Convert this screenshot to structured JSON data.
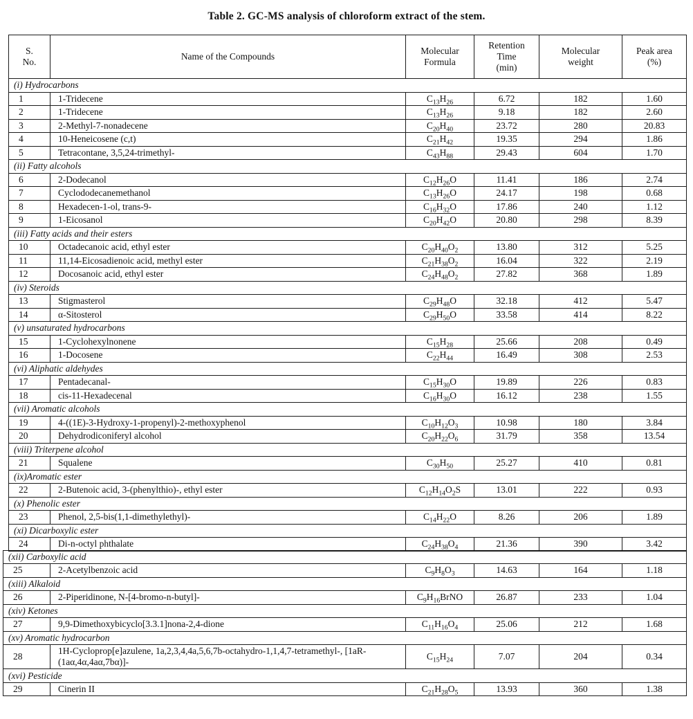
{
  "page": {
    "title": "Table 2.  GC-MS analysis of chloroform extract of the stem."
  },
  "table": {
    "headers": {
      "sno": "S.\nNo.",
      "name": "Name of the Compounds",
      "formula": "Molecular\nFormula",
      "retention": "Retention\nTime\n(min)",
      "weight": "Molecular\nweight",
      "area": "Peak area\n(%)"
    },
    "parts": [
      {
        "sections": [
          {
            "label": "(i) Hydrocarbons",
            "rows": [
              {
                "no": "1",
                "name": "1-Tridecene",
                "formula": "C13H26",
                "retention": "6.72",
                "weight": "182",
                "area": "1.60"
              },
              {
                "no": "2",
                "name": "1-Tridecene",
                "formula": "C13H26",
                "retention": "9.18",
                "weight": "182",
                "area": "2.60"
              },
              {
                "no": "3",
                "name": "2-Methyl-7-nonadecene",
                "formula": "C20H40",
                "retention": "23.72",
                "weight": "280",
                "area": "20.83"
              },
              {
                "no": "4",
                "name": "10-Heneicosene (c,t)",
                "formula": "C21H42",
                "retention": "19.35",
                "weight": "294",
                "area": "1.86"
              },
              {
                "no": "5",
                "name": "Tetracontane, 3,5,24-trimethyl-",
                "formula": "C43H88",
                "retention": "29.43",
                "weight": "604",
                "area": "1.70"
              }
            ]
          },
          {
            "label": "(ii) Fatty alcohols",
            "rows": [
              {
                "no": "6",
                "name": "2-Dodecanol",
                "formula": "C12H26O",
                "retention": "11.41",
                "weight": "186",
                "area": "2.74"
              },
              {
                "no": "7",
                "name": "Cyclododecanemethanol",
                "formula": "C13H26O",
                "retention": "24.17",
                "weight": "198",
                "area": "0.68"
              },
              {
                "no": "8",
                "name": "Hexadecen-1-ol, trans-9-",
                "formula": "C16H32O",
                "retention": "17.86",
                "weight": "240",
                "area": "1.12"
              },
              {
                "no": "9",
                "name": "1-Eicosanol",
                "formula": "C20H42O",
                "retention": "20.80",
                "weight": "298",
                "area": "8.39"
              }
            ]
          },
          {
            "label": "(iii) Fatty acids and their esters",
            "rows": [
              {
                "no": "10",
                "name": "Octadecanoic acid, ethyl ester",
                "formula": "C20H40O2",
                "retention": "13.80",
                "weight": "312",
                "area": "5.25"
              },
              {
                "no": "11",
                "name": "11,14-Eicosadienoic acid, methyl ester",
                "formula": "C21H38O2",
                "retention": "16.04",
                "weight": "322",
                "area": "2.19"
              },
              {
                "no": "12",
                "name": "Docosanoic acid, ethyl ester",
                "formula": "C24H48O2",
                "retention": "27.82",
                "weight": "368",
                "area": "1.89"
              }
            ]
          },
          {
            "label": "(iv) Steroids",
            "rows": [
              {
                "no": "13",
                "name": "Stigmasterol",
                "formula": "C29H48O",
                "retention": "32.18",
                "weight": "412",
                "area": "5.47"
              },
              {
                "no": "14",
                "name": "α-Sitosterol",
                "formula": "C29H50O",
                "retention": "33.58",
                "weight": "414",
                "area": "8.22"
              }
            ]
          },
          {
            "label": "(v) unsaturated hydrocarbons",
            "rows": [
              {
                "no": "15",
                "name": "1-Cyclohexylnonene",
                "formula": "C15H28",
                "retention": "25.66",
                "weight": "208",
                "area": "0.49"
              },
              {
                "no": "16",
                "name": "1-Docosene",
                "formula": "C22H44",
                "retention": "16.49",
                "weight": "308",
                "area": "2.53"
              }
            ]
          },
          {
            "label": "(vi) Aliphatic aldehydes",
            "rows": [
              {
                "no": "17",
                "name": "Pentadecanal-",
                "formula": "C15H30O",
                "retention": "19.89",
                "weight": "226",
                "area": "0.83"
              },
              {
                "no": "18",
                "name": "cis-11-Hexadecenal",
                "formula": "C16H30O",
                "retention": "16.12",
                "weight": "238",
                "area": "1.55"
              }
            ]
          },
          {
            "label": "(vii) Aromatic alcohols",
            "rows": [
              {
                "no": "19",
                "name": "4-((1E)-3-Hydroxy-1-propenyl)-2-methoxyphenol",
                "formula": "C10H12O3",
                "retention": "10.98",
                "weight": "180",
                "area": "3.84"
              },
              {
                "no": "20",
                "name": "Dehydrodiconiferyl alcohol",
                "formula": "C20H22O6",
                "retention": "31.79",
                "weight": "358",
                "area": "13.54"
              }
            ]
          },
          {
            "label": "(viii) Triterpene alcohol",
            "rows": [
              {
                "no": "21",
                "name": "Squalene",
                "formula": "C30H50",
                "retention": "25.27",
                "weight": "410",
                "area": "0.81"
              }
            ]
          },
          {
            "label": "(ix)Aromatic ester",
            "rows": [
              {
                "no": "22",
                "name": "2-Butenoic acid, 3-(phenylthio)-, ethyl ester",
                "formula": "C12H14O2S",
                "retention": "13.01",
                "weight": "222",
                "area": "0.93"
              }
            ]
          },
          {
            "label": "(x) Phenolic ester",
            "rows": [
              {
                "no": "23",
                "name": "Phenol, 2,5-bis(1,1-dimethylethyl)-",
                "formula": "C14H22O",
                "retention": "8.26",
                "weight": "206",
                "area": "1.89"
              }
            ]
          },
          {
            "label": "(xi) Dicarboxylic ester",
            "rows": [
              {
                "no": "24",
                "name": "Di-n-octyl phthalate",
                "formula": "C24H38O4",
                "retention": "21.36",
                "weight": "390",
                "area": "3.42"
              }
            ]
          }
        ]
      },
      {
        "sections": [
          {
            "label": "(xii) Carboxylic acid",
            "rows": [
              {
                "no": "25",
                "name": "2-Acetylbenzoic acid",
                "formula": "C9H8O3",
                "retention": "14.63",
                "weight": "164",
                "area": "1.18"
              }
            ]
          },
          {
            "label": "(xiii) Alkaloid",
            "rows": [
              {
                "no": "26",
                "name": "2-Piperidinone, N-[4-bromo-n-butyl]-",
                "formula": "C9H16BrNO",
                "retention": "26.87",
                "weight": "233",
                "area": "1.04"
              }
            ]
          },
          {
            "label": "(xiv) Ketones",
            "rows": [
              {
                "no": "27",
                "name": "9,9-Dimethoxybicyclo[3.3.1]nona-2,4-dione",
                "formula": "C11H16O4",
                "retention": "25.06",
                "weight": "212",
                "area": "1.68"
              }
            ]
          },
          {
            "label": "(xv) Aromatic hydrocarbon",
            "rows": [
              {
                "no": "28",
                "name": "1H-Cycloprop[e]azulene, 1a,2,3,4,4a,5,6,7b-octahydro-1,1,4,7-tetramethyl-, [1aR-(1aα,4α,4aα,7bα)]-",
                "formula": "C15H24",
                "retention": "7.07",
                "weight": "204",
                "area": "0.34"
              }
            ]
          },
          {
            "label": "(xvi) Pesticide",
            "rows": [
              {
                "no": "29",
                "name": "Cinerin II",
                "formula": "C21H28O5",
                "retention": "13.93",
                "weight": "360",
                "area": "1.38"
              }
            ]
          }
        ]
      }
    ]
  }
}
